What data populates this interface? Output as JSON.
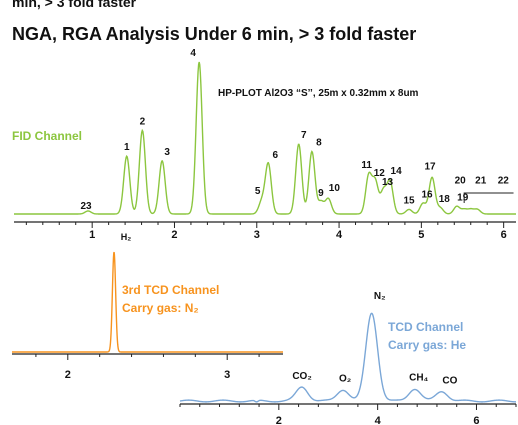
{
  "header": {
    "clipped_title": "min, > 3 fold faster",
    "title": "NGA, RGA Analysis Under 6 min, > 3 fold faster"
  },
  "colors": {
    "fid": "#8cc63f",
    "tcd3": "#f7931e",
    "tcd": "#7ba7d7",
    "axis": "#222222",
    "text": "#111111"
  },
  "chart_data": [
    {
      "type": "line",
      "name": "fid-chromatogram",
      "title": "FID Channel",
      "column_label": "HP-PLOT Al2O3 “S’’, 25m x 0.32mm x 8um",
      "xlim": [
        0.05,
        6.15
      ],
      "xticks": [
        1,
        2,
        3,
        4,
        5,
        6
      ],
      "xticklabels": [
        "1",
        "2",
        "3",
        "4",
        "5",
        "6"
      ],
      "peaks": [
        {
          "label": "23",
          "x": 0.95,
          "h": 0.02
        },
        {
          "label": "1",
          "x": 1.42,
          "h": 0.38
        },
        {
          "label": "2",
          "x": 1.61,
          "h": 0.55
        },
        {
          "label": "3",
          "x": 1.85,
          "h": 0.35
        },
        {
          "label": "4",
          "x": 2.3,
          "h": 1.0
        },
        {
          "label": "5",
          "x": 3.06,
          "h": 0.08
        },
        {
          "label": "6",
          "x": 3.14,
          "h": 0.33
        },
        {
          "label": "7",
          "x": 3.51,
          "h": 0.46
        },
        {
          "label": "8",
          "x": 3.67,
          "h": 0.41
        },
        {
          "label": "9",
          "x": 3.78,
          "h": 0.08
        },
        {
          "label": "10",
          "x": 3.87,
          "h": 0.1
        },
        {
          "label": "11",
          "x": 4.36,
          "h": 0.25
        },
        {
          "label": "12",
          "x": 4.44,
          "h": 0.21
        },
        {
          "label": "13",
          "x": 4.54,
          "h": 0.15
        },
        {
          "label": "14",
          "x": 4.62,
          "h": 0.21
        },
        {
          "label": "15",
          "x": 4.85,
          "h": 0.03
        },
        {
          "label": "16",
          "x": 5.02,
          "h": 0.07
        },
        {
          "label": "17",
          "x": 5.13,
          "h": 0.24
        },
        {
          "label": "18",
          "x": 5.23,
          "h": 0.04
        },
        {
          "label": "19",
          "x": 5.43,
          "h": 0.05
        },
        {
          "label": "20",
          "x": 5.52,
          "h": 0.03
        },
        {
          "label": "21",
          "x": 5.6,
          "h": 0.03
        },
        {
          "label": "22",
          "x": 5.68,
          "h": 0.03
        }
      ]
    },
    {
      "type": "line",
      "name": "third-tcd-chromatogram",
      "title": "3rd TCD Channel",
      "subtitle": "Carry gas: N₂",
      "xlim": [
        1.65,
        3.35
      ],
      "xticks": [
        2,
        3
      ],
      "xticklabels": [
        "2",
        "3"
      ],
      "peaks": [
        {
          "label": "H₂",
          "x": 2.29,
          "h": 1.0
        }
      ]
    },
    {
      "type": "line",
      "name": "tcd-chromatogram",
      "title": "TCD Channel",
      "subtitle": "Carry gas: He",
      "xlim": [
        0.0,
        6.8
      ],
      "xticks": [
        2,
        4,
        6
      ],
      "xticklabels": [
        "2",
        "4",
        "6"
      ],
      "peaks": [
        {
          "label": "CO₂",
          "x": 2.47,
          "h": 0.16
        },
        {
          "label": "O₂",
          "x": 3.3,
          "h": 0.13
        },
        {
          "label": "N₂",
          "x": 3.88,
          "h": 1.0
        },
        {
          "label": "CH₄",
          "x": 4.75,
          "h": 0.14
        },
        {
          "label": "CO",
          "x": 5.3,
          "h": 0.11
        }
      ]
    }
  ]
}
